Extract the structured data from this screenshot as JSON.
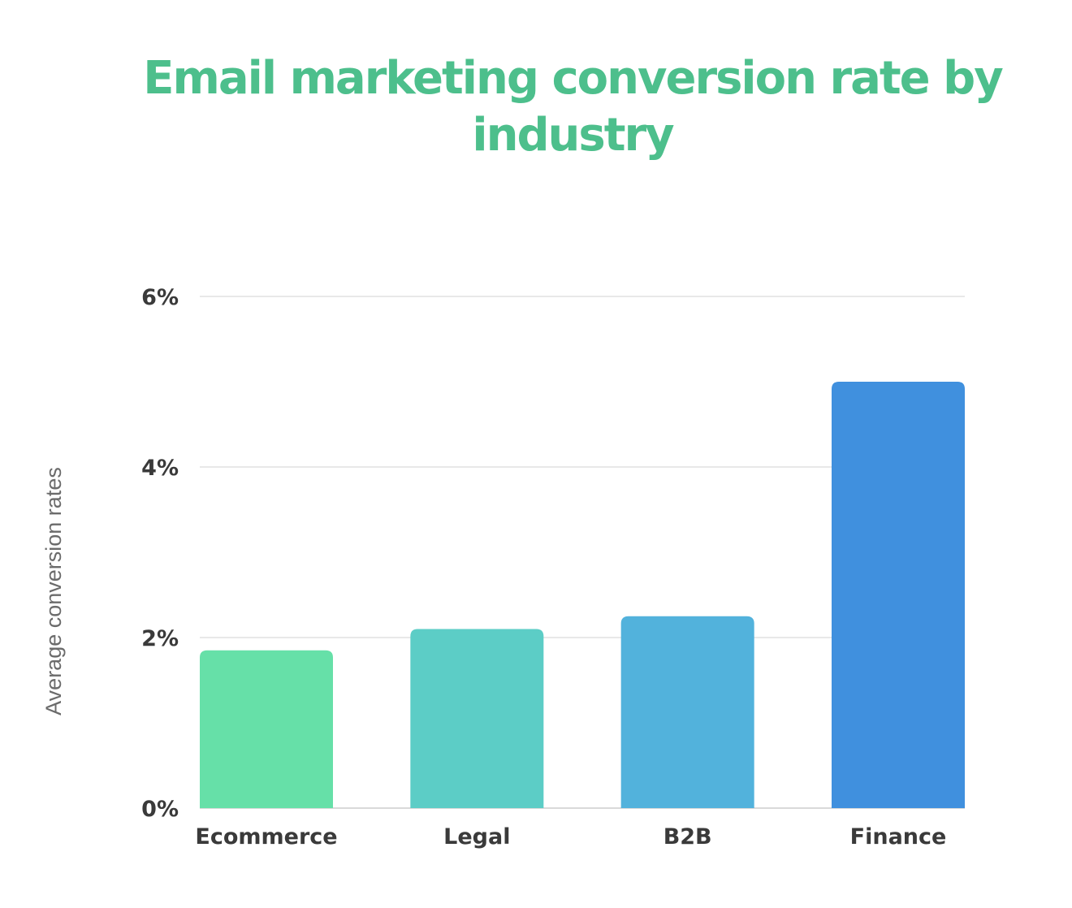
{
  "chart_data": {
    "type": "bar",
    "title": "Email marketing conversion rate by industry",
    "ylabel": "Average conversion rates",
    "xlabel": "",
    "categories": [
      "Ecommerce",
      "Legal",
      "B2B",
      "Finance"
    ],
    "values": [
      1.85,
      2.1,
      2.25,
      5.0
    ],
    "ylim": [
      0,
      6
    ],
    "yticks": [
      0,
      2,
      4,
      6
    ],
    "ytick_labels": [
      "0%",
      "2%",
      "4%",
      "6%"
    ],
    "grid": true,
    "colors": {
      "title": "#4dbf8c",
      "bars": [
        "#66e0a8",
        "#5ccdc6",
        "#52b2dc",
        "#4090de"
      ],
      "grid": "#e8e8e8"
    }
  }
}
